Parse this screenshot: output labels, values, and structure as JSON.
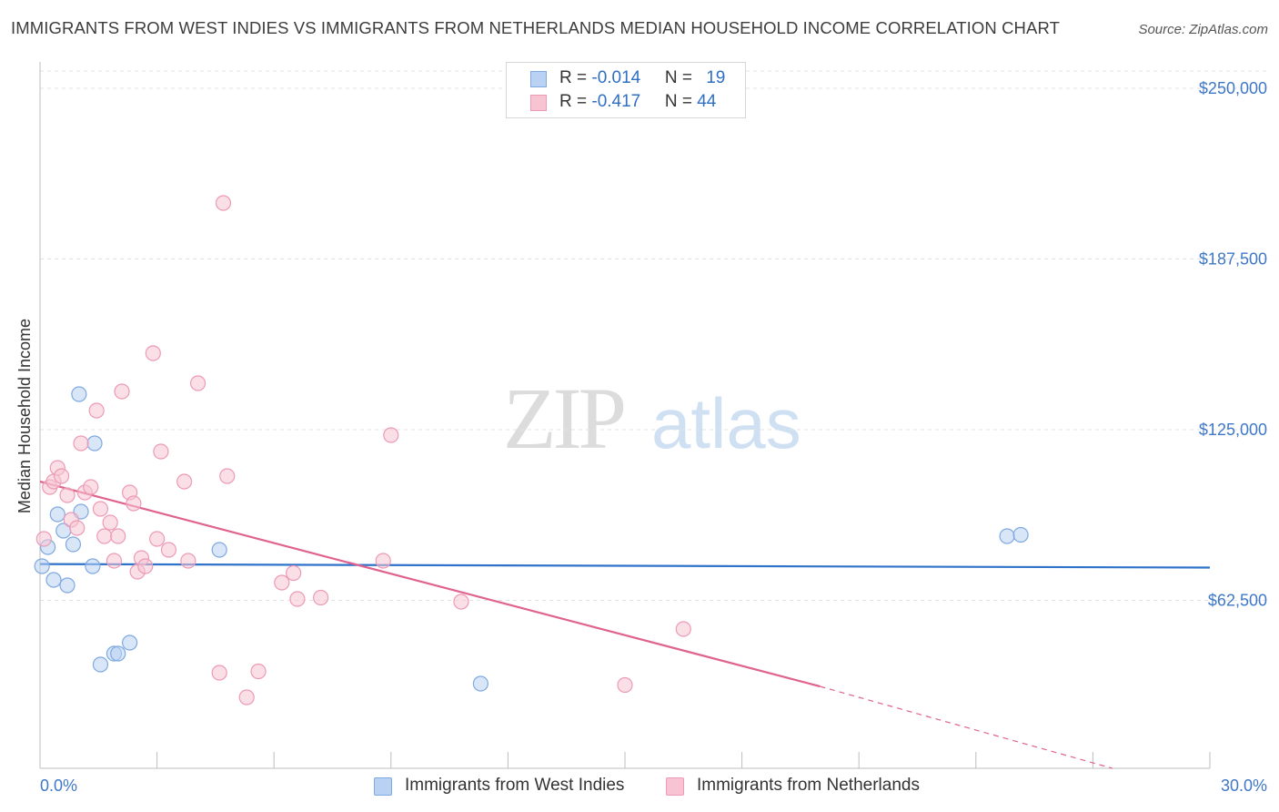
{
  "title": "IMMIGRANTS FROM WEST INDIES VS IMMIGRANTS FROM NETHERLANDS MEDIAN HOUSEHOLD INCOME CORRELATION CHART",
  "source": "Source: ZipAtlas.com",
  "watermark": {
    "zip": "ZIP",
    "atlas": "atlas"
  },
  "legend": {
    "rows": [
      {
        "r_label": "R = ",
        "r_value": "-0.014",
        "n_label": "N = ",
        "n_value": "19"
      },
      {
        "r_label": "R = ",
        "r_value": "-0.417",
        "n_label": "N = ",
        "n_value": "44"
      }
    ]
  },
  "colors": {
    "blue_fill": "#b9d2f3",
    "blue_stroke": "#7ea9e0",
    "blue_line": "#2f72c9",
    "pink_fill": "#f8c4d4",
    "pink_stroke": "#ec9ab5",
    "pink_line": "#e0638f",
    "axis_text": "#3f78c6",
    "grid": "#e3e3e3"
  },
  "chart_data": {
    "type": "scatter",
    "title": "IMMIGRANTS FROM WEST INDIES VS IMMIGRANTS FROM NETHERLANDS MEDIAN HOUSEHOLD INCOME CORRELATION CHART",
    "xlabel": "",
    "ylabel": "Median Household Income",
    "xlim": [
      0,
      30
    ],
    "ylim": [
      0,
      250000
    ],
    "x_tick_labels": [
      "0.0%",
      "30.0%"
    ],
    "y_ticks": [
      62500,
      125000,
      187500,
      250000
    ],
    "y_tick_labels": [
      "$62,500",
      "$125,000",
      "$187,500",
      "$250,000"
    ],
    "grid": "horizontal-dashed",
    "legend_position": "top-center",
    "series": [
      {
        "name": "Immigrants from West Indies",
        "color": "#7ea9e0",
        "points": [
          {
            "x": 0.05,
            "y": 75000
          },
          {
            "x": 0.2,
            "y": 82000
          },
          {
            "x": 0.35,
            "y": 70000
          },
          {
            "x": 0.45,
            "y": 94000
          },
          {
            "x": 0.6,
            "y": 88000
          },
          {
            "x": 0.7,
            "y": 68000
          },
          {
            "x": 0.85,
            "y": 83000
          },
          {
            "x": 1.0,
            "y": 138000
          },
          {
            "x": 1.05,
            "y": 95000
          },
          {
            "x": 1.35,
            "y": 75000
          },
          {
            "x": 1.4,
            "y": 120000
          },
          {
            "x": 1.55,
            "y": 39000
          },
          {
            "x": 1.9,
            "y": 43000
          },
          {
            "x": 2.0,
            "y": 43000
          },
          {
            "x": 2.3,
            "y": 47000
          },
          {
            "x": 4.6,
            "y": 81000
          },
          {
            "x": 11.3,
            "y": 32000
          },
          {
            "x": 24.8,
            "y": 86000
          },
          {
            "x": 25.15,
            "y": 86500
          }
        ],
        "trend": {
          "x": [
            0,
            30
          ],
          "y": [
            75800,
            74500
          ]
        }
      },
      {
        "name": "Immigrants from Netherlands",
        "color": "#ec9ab5",
        "points": [
          {
            "x": 0.1,
            "y": 85000
          },
          {
            "x": 0.25,
            "y": 104000
          },
          {
            "x": 0.35,
            "y": 106000
          },
          {
            "x": 0.45,
            "y": 111000
          },
          {
            "x": 0.55,
            "y": 108000
          },
          {
            "x": 0.7,
            "y": 101000
          },
          {
            "x": 0.8,
            "y": 92000
          },
          {
            "x": 0.95,
            "y": 89000
          },
          {
            "x": 1.05,
            "y": 120000
          },
          {
            "x": 1.15,
            "y": 102000
          },
          {
            "x": 1.3,
            "y": 104000
          },
          {
            "x": 1.45,
            "y": 132000
          },
          {
            "x": 1.55,
            "y": 96000
          },
          {
            "x": 1.65,
            "y": 86000
          },
          {
            "x": 1.8,
            "y": 91000
          },
          {
            "x": 1.9,
            "y": 77000
          },
          {
            "x": 2.0,
            "y": 86000
          },
          {
            "x": 2.1,
            "y": 139000
          },
          {
            "x": 2.3,
            "y": 102000
          },
          {
            "x": 2.4,
            "y": 98000
          },
          {
            "x": 2.5,
            "y": 73000
          },
          {
            "x": 2.6,
            "y": 78000
          },
          {
            "x": 2.7,
            "y": 75000
          },
          {
            "x": 2.9,
            "y": 153000
          },
          {
            "x": 3.0,
            "y": 85000
          },
          {
            "x": 3.1,
            "y": 117000
          },
          {
            "x": 3.3,
            "y": 81000
          },
          {
            "x": 3.7,
            "y": 106000
          },
          {
            "x": 3.8,
            "y": 77000
          },
          {
            "x": 4.05,
            "y": 142000
          },
          {
            "x": 4.6,
            "y": 36000
          },
          {
            "x": 4.7,
            "y": 208000
          },
          {
            "x": 4.8,
            "y": 108000
          },
          {
            "x": 5.3,
            "y": 27000
          },
          {
            "x": 5.6,
            "y": 36500
          },
          {
            "x": 6.2,
            "y": 69000
          },
          {
            "x": 6.5,
            "y": 72500
          },
          {
            "x": 6.6,
            "y": 63000
          },
          {
            "x": 7.2,
            "y": 63500
          },
          {
            "x": 8.8,
            "y": 77000
          },
          {
            "x": 9.0,
            "y": 123000
          },
          {
            "x": 10.8,
            "y": 62000
          },
          {
            "x": 15.0,
            "y": 31500
          },
          {
            "x": 16.5,
            "y": 52000
          }
        ],
        "trend": {
          "x": [
            0,
            20
          ],
          "y": [
            106000,
            31000
          ]
        },
        "trend_extension": {
          "x": [
            20,
            27.5
          ],
          "y": [
            31000,
            1000
          ]
        }
      }
    ]
  },
  "bottom_legend": [
    {
      "label": "Immigrants from West Indies"
    },
    {
      "label": "Immigrants from Netherlands"
    }
  ]
}
